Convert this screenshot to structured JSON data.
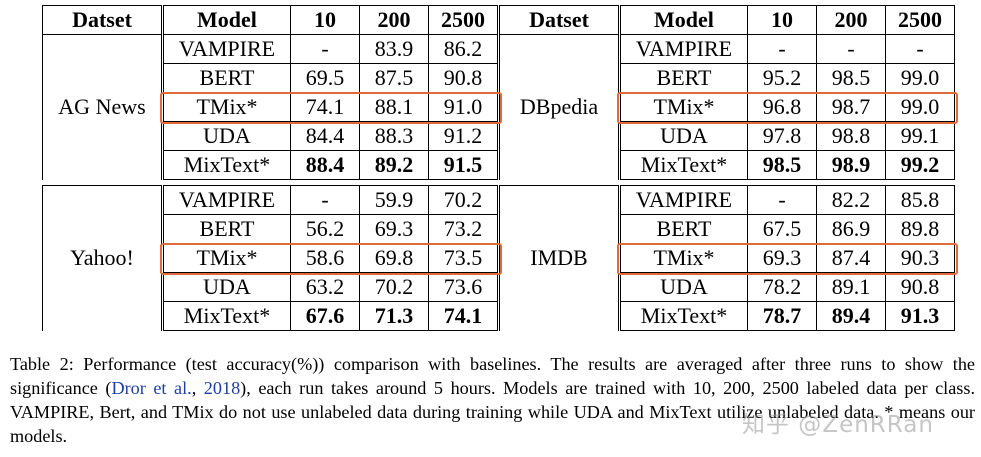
{
  "table": {
    "headers": [
      "Datset",
      "Model",
      "10",
      "200",
      "2500"
    ],
    "groups": [
      {
        "left": {
          "dataset": "AG News",
          "rows": [
            {
              "model": "VAMPIRE",
              "values": [
                "-",
                "83.9",
                "86.2"
              ]
            },
            {
              "model": "BERT",
              "values": [
                "69.5",
                "87.5",
                "90.8"
              ]
            },
            {
              "model": "TMix*",
              "values": [
                "74.1",
                "88.1",
                "91.0"
              ],
              "highlighted": true
            },
            {
              "model": "UDA",
              "values": [
                "84.4",
                "88.3",
                "91.2"
              ]
            },
            {
              "model": "MixText*",
              "values": [
                "88.4",
                "89.2",
                "91.5"
              ],
              "bold": true
            }
          ]
        },
        "right": {
          "dataset": "DBpedia",
          "rows": [
            {
              "model": "VAMPIRE",
              "values": [
                "-",
                "-",
                "-"
              ]
            },
            {
              "model": "BERT",
              "values": [
                "95.2",
                "98.5",
                "99.0"
              ]
            },
            {
              "model": "TMix*",
              "values": [
                "96.8",
                "98.7",
                "99.0"
              ],
              "highlighted": true
            },
            {
              "model": "UDA",
              "values": [
                "97.8",
                "98.8",
                "99.1"
              ]
            },
            {
              "model": "MixText*",
              "values": [
                "98.5",
                "98.9",
                "99.2"
              ],
              "bold": true
            }
          ]
        }
      },
      {
        "left": {
          "dataset": "Yahoo!",
          "rows": [
            {
              "model": "VAMPIRE",
              "values": [
                "-",
                "59.9",
                "70.2"
              ]
            },
            {
              "model": "BERT",
              "values": [
                "56.2",
                "69.3",
                "73.2"
              ]
            },
            {
              "model": "TMix*",
              "values": [
                "58.6",
                "69.8",
                "73.5"
              ],
              "highlighted": true
            },
            {
              "model": "UDA",
              "values": [
                "63.2",
                "70.2",
                "73.6"
              ]
            },
            {
              "model": "MixText*",
              "values": [
                "67.6",
                "71.3",
                "74.1"
              ],
              "bold": true
            }
          ]
        },
        "right": {
          "dataset": "IMDB",
          "rows": [
            {
              "model": "VAMPIRE",
              "values": [
                "-",
                "82.2",
                "85.8"
              ]
            },
            {
              "model": "BERT",
              "values": [
                "67.5",
                "86.9",
                "89.8"
              ]
            },
            {
              "model": "TMix*",
              "values": [
                "69.3",
                "87.4",
                "90.3"
              ],
              "highlighted": true
            },
            {
              "model": "UDA",
              "values": [
                "78.2",
                "89.1",
                "90.8"
              ]
            },
            {
              "model": "MixText*",
              "values": [
                "78.7",
                "89.4",
                "91.3"
              ],
              "bold": true
            }
          ]
        }
      }
    ]
  },
  "caption": {
    "part1": "Table 2: Performance (test accuracy(%)) comparison with baselines. The results are averaged after three runs to show the significance (",
    "cite_author": "Dror et al.",
    "cite_sep": ", ",
    "cite_year": "2018",
    "part2": "), each run takes around 5 hours. Models are trained with 10, 200, 2500 labeled data per class. VAMPIRE, Bert, and TMix do not use unlabeled data during training while UDA and MixText utilize unlabeled data. * means our models."
  },
  "watermark": "知乎 @ZenRRan",
  "colors": {
    "highlight": "#e06a3a",
    "citation": "#1f3fa0"
  }
}
